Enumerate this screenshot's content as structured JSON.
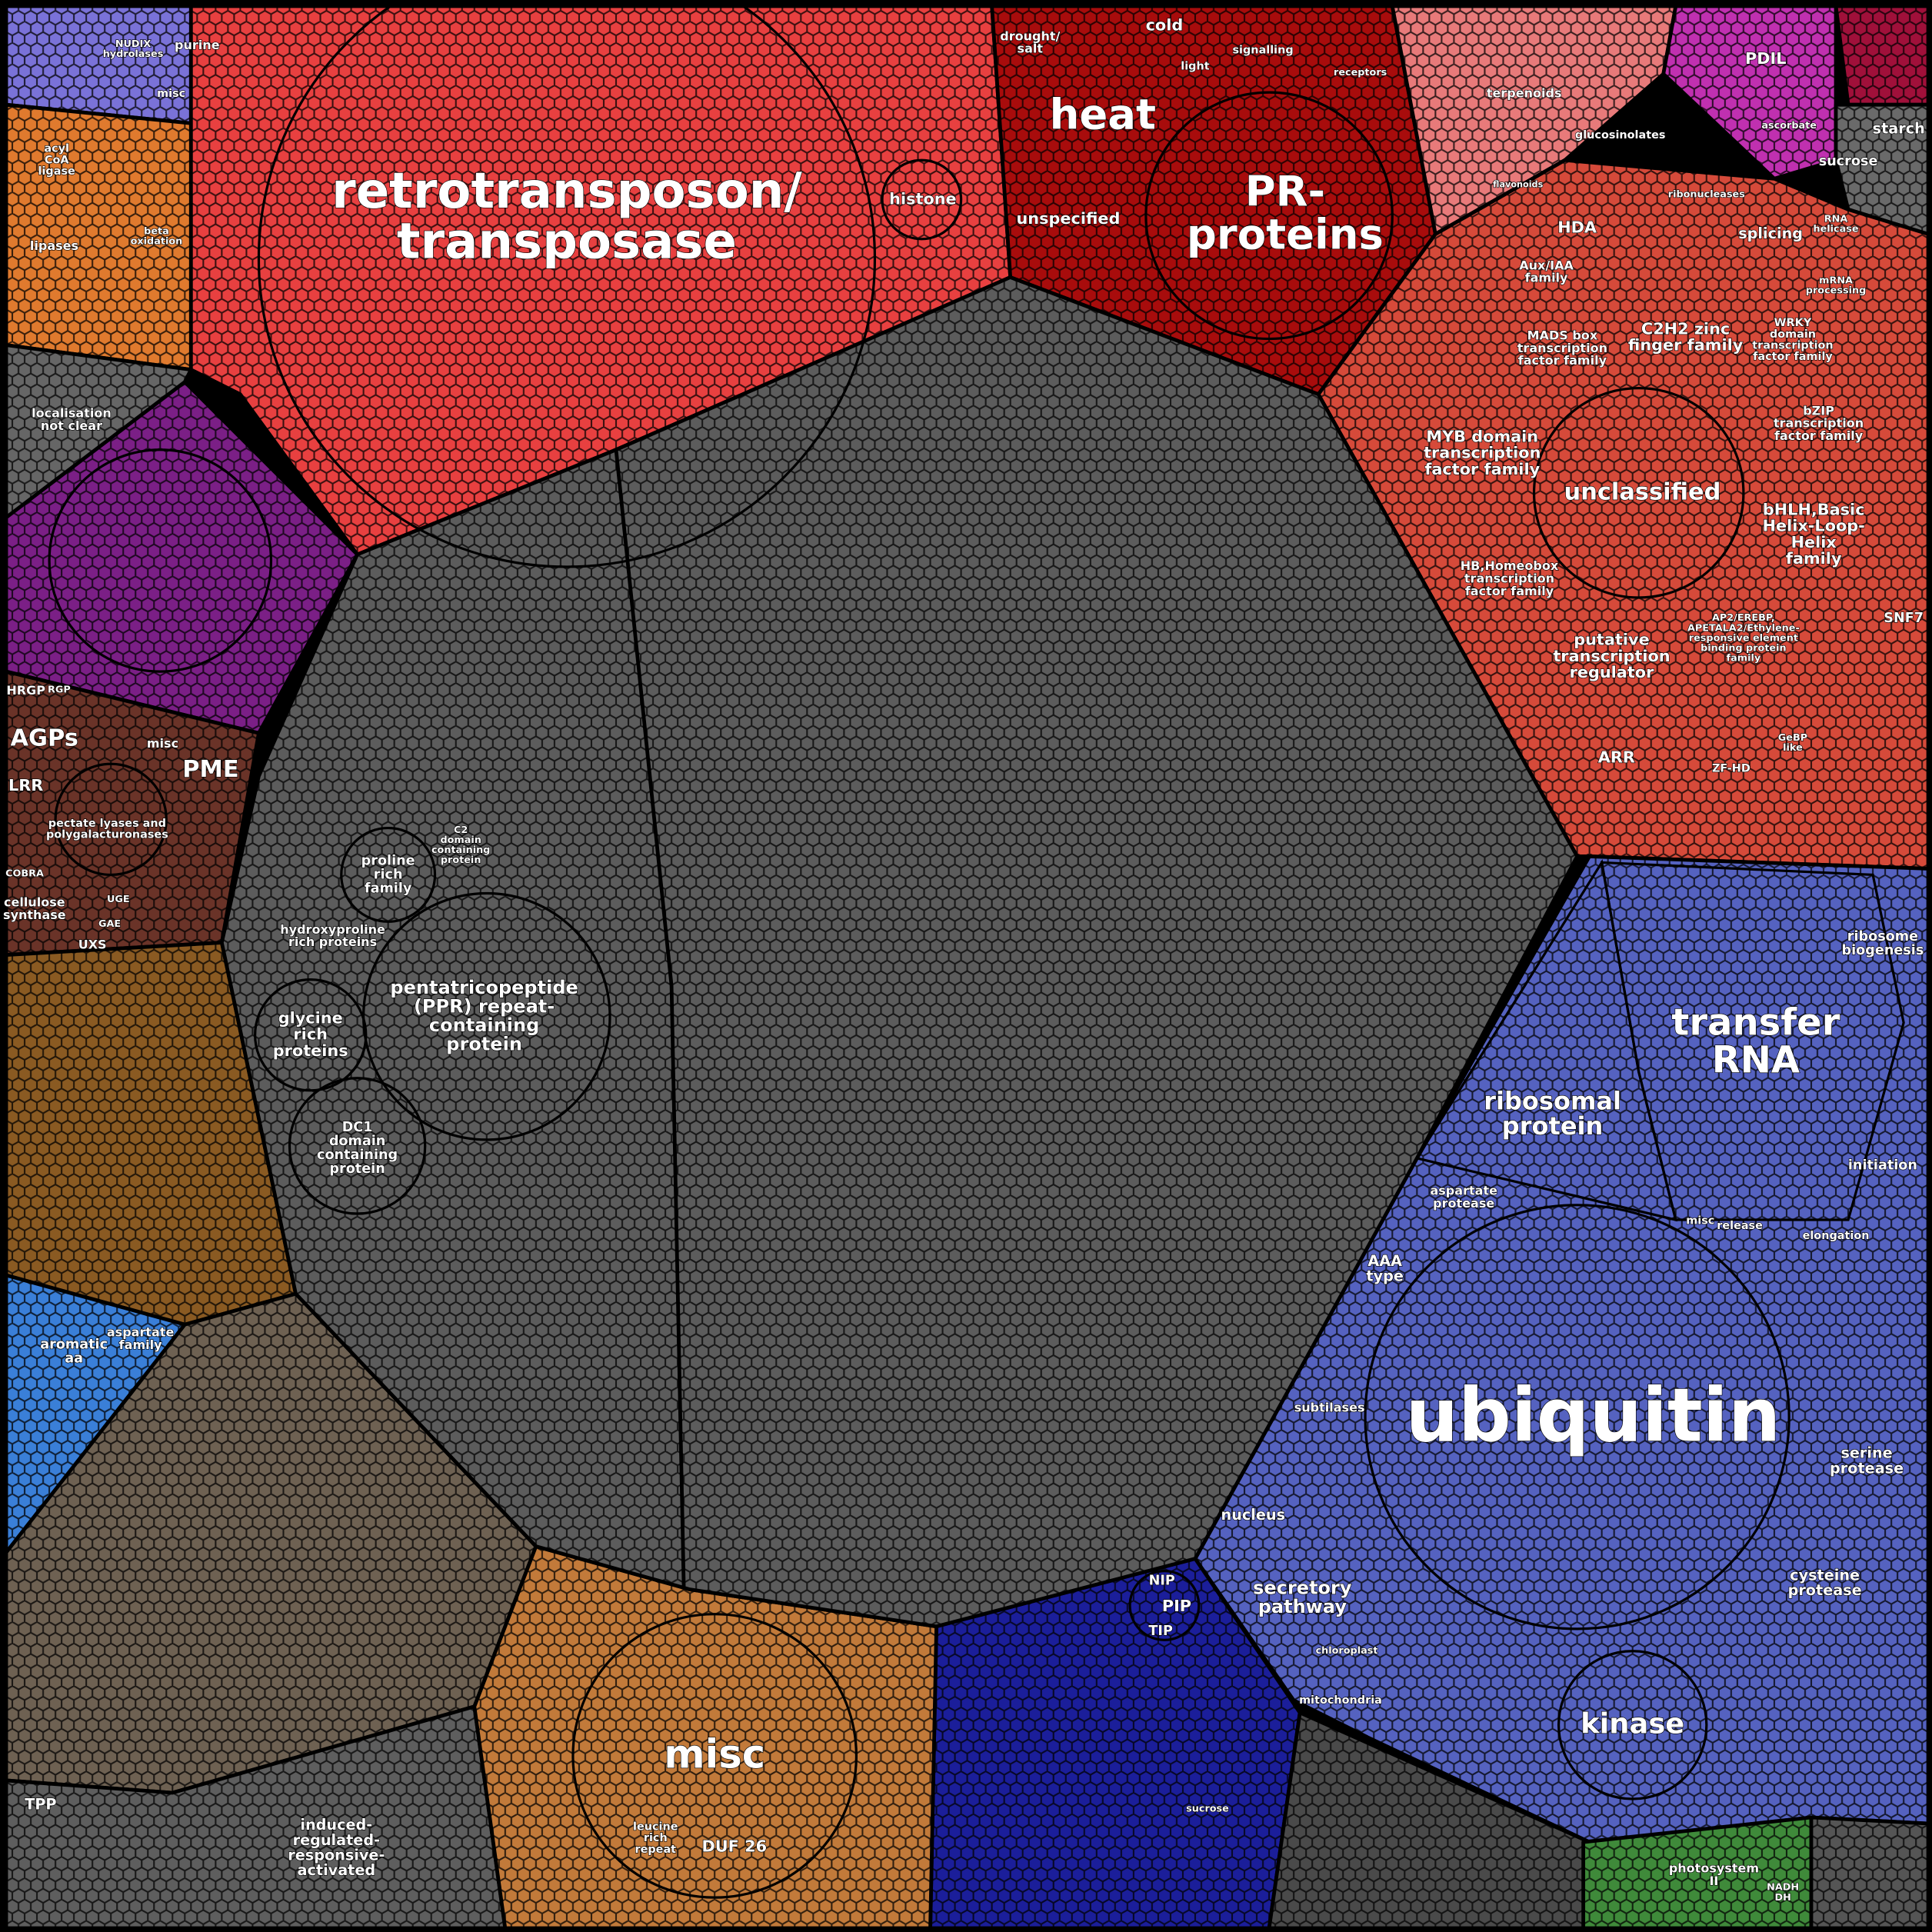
{
  "labels": {
    "retrotransposon": [
      "retrotransposon/",
      "transposase"
    ],
    "histone": [
      "histone"
    ],
    "heat": [
      "heat"
    ],
    "cold": [
      "cold"
    ],
    "drought": [
      "drought/",
      "salt"
    ],
    "light": [
      "light"
    ],
    "signalling": [
      "signalling"
    ],
    "receptors": [
      "receptors"
    ],
    "unspecified": [
      "unspecified"
    ],
    "pr": [
      "PR-",
      "proteins"
    ],
    "terpenoids": [
      "terpenoids"
    ],
    "glucosinolates": [
      "glucosinolates"
    ],
    "flavonoids": [
      "flavonoids"
    ],
    "pdil": [
      "PDIL"
    ],
    "ascorbate": [
      "ascorbate"
    ],
    "starch": [
      "starch"
    ],
    "sucrose_top": [
      "sucrose"
    ],
    "hda": [
      "HDA"
    ],
    "splicing": [
      "splicing"
    ],
    "helicase": [
      "RNA",
      "helicase"
    ],
    "mrna": [
      "mRNA",
      "processing"
    ],
    "ribonucleases": [
      "ribonucleases"
    ],
    "auxiaa": [
      "Aux/IAA",
      "family"
    ],
    "c2h2": [
      "C2H2 zinc",
      "finger family"
    ],
    "mads": [
      "MADS box",
      "transcription",
      "factor family"
    ],
    "wrky": [
      "WRKY",
      "domain",
      "transcription",
      "factor family"
    ],
    "bzip": [
      "bZIP",
      "transcription",
      "factor family"
    ],
    "myb": [
      "MYB domain",
      "transcription",
      "factor family"
    ],
    "unclassified": [
      "unclassified"
    ],
    "bhlh": [
      "bHLH,Basic",
      "Helix-Loop-",
      "Helix",
      "family"
    ],
    "hb": [
      "HB,Homeobox",
      "transcription",
      "factor family"
    ],
    "putative": [
      "putative",
      "transcription",
      "regulator"
    ],
    "ap2": [
      "AP2/EREBP,",
      "APETALA2/Ethylene-",
      "responsive element",
      "binding protein",
      "family"
    ],
    "arr": [
      "ARR"
    ],
    "zfhd": [
      "ZF-HD"
    ],
    "snf7": [
      "SNF7"
    ],
    "gebp": [
      "GeBP",
      "like"
    ],
    "trna": [
      "transfer",
      "RNA"
    ],
    "ribosomal": [
      "ribosomal",
      "protein"
    ],
    "biogenesis": [
      "ribosome",
      "biogenesis"
    ],
    "initiation": [
      "initiation"
    ],
    "elongation": [
      "elongation"
    ],
    "release": [
      "release"
    ],
    "misc_blue": [
      "misc"
    ],
    "aspartate_protease": [
      "aspartate",
      "protease"
    ],
    "aaa": [
      "AAA",
      "type"
    ],
    "ubiquitin": [
      "ubiquitin"
    ],
    "subtilases": [
      "subtilases"
    ],
    "serine": [
      "serine",
      "protease"
    ],
    "nucleus": [
      "nucleus"
    ],
    "secretory": [
      "secretory",
      "pathway"
    ],
    "cysteine": [
      "cysteine",
      "protease"
    ],
    "kinase": [
      "kinase"
    ],
    "mitochondria": [
      "mitochondria"
    ],
    "chloroplast": [
      "chloroplast"
    ],
    "nip": [
      "NIP"
    ],
    "pip": [
      "PIP"
    ],
    "tip": [
      "TIP"
    ],
    "sucrose_bottom": [
      "sucrose"
    ],
    "misc_orange": [
      "misc"
    ],
    "duf26": [
      "DUF 26"
    ],
    "lrr_repeat": [
      "leucine",
      "rich",
      "repeat"
    ],
    "induced": [
      "induced-",
      "regulated-",
      "responsive-",
      "activated"
    ],
    "ppr": [
      "pentatricopeptide",
      "(PPR) repeat-",
      "containing",
      "protein"
    ],
    "glycine": [
      "glycine",
      "rich",
      "proteins"
    ],
    "dc1": [
      "DC1",
      "domain",
      "containing",
      "protein"
    ],
    "proline": [
      "proline",
      "rich",
      "family"
    ],
    "hydroxyproline": [
      "hydroxyproline",
      "rich proteins"
    ],
    "c2": [
      "C2",
      "domain",
      "containing",
      "protein"
    ],
    "agps": [
      "AGPs"
    ],
    "pme": [
      "PME"
    ],
    "lrr": [
      "LRR"
    ],
    "hrgp": [
      "HRGP"
    ],
    "rgp": [
      "RGP"
    ],
    "misc_cw": [
      "misc"
    ],
    "pectate": [
      "pectate lyases and",
      "polygalacturonases"
    ],
    "cellulose": [
      "cellulose",
      "synthase"
    ],
    "cobra": [
      "COBRA"
    ],
    "uxs": [
      "UXS"
    ],
    "gae": [
      "GAE"
    ],
    "uge": [
      "UGE"
    ],
    "aromatic": [
      "aromatic",
      "aa"
    ],
    "aspartate_family": [
      "aspartate",
      "family"
    ],
    "acyl": [
      "acyl",
      "CoA",
      "ligase"
    ],
    "lipases": [
      "lipases"
    ],
    "beta": [
      "beta",
      "oxidation"
    ],
    "localisation": [
      "localisation",
      "not clear"
    ],
    "nudix": [
      "NUDIX",
      "hydrolases"
    ],
    "purine": [
      "purine"
    ],
    "misc_tl": [
      "misc"
    ],
    "tpp": [
      "TPP"
    ],
    "photosystem": [
      "photosystem",
      "II"
    ],
    "nadh": [
      "NADH",
      "DH"
    ]
  }
}
